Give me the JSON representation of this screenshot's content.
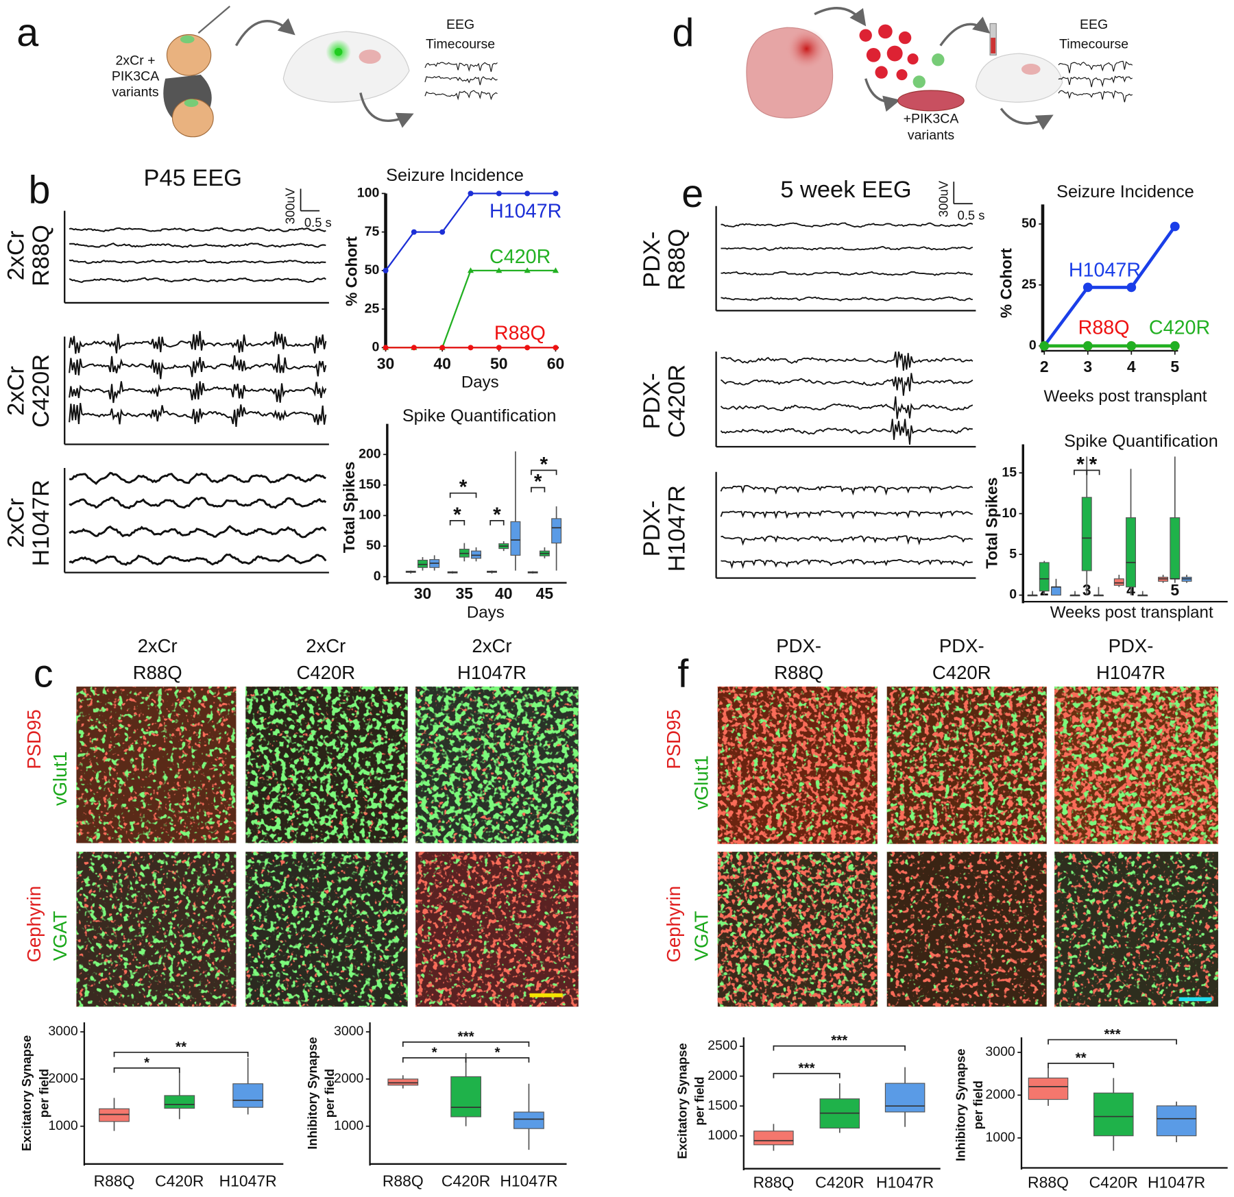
{
  "panel_a": {
    "label": "a",
    "construct": [
      "2xCr +",
      "PIK3CA",
      "variants"
    ],
    "eeg": [
      "EEG",
      "Timecourse"
    ]
  },
  "panel_b": {
    "label": "b",
    "title": "P45 EEG",
    "scale": [
      "300uV",
      "0.5 s"
    ],
    "rows": [
      [
        "2xCr",
        "R88Q"
      ],
      [
        "2xCr",
        "C420R"
      ],
      [
        "2xCr",
        "H1047R"
      ]
    ]
  },
  "panel_c": {
    "label": "c",
    "columns": [
      [
        "2xCr",
        "R88Q"
      ],
      [
        "2xCr",
        "C420R"
      ],
      [
        "2xCr",
        "H1047R"
      ]
    ],
    "rows": [
      [
        "PSD95",
        "vGlut1"
      ],
      [
        "Gephyrin",
        "VGAT"
      ]
    ]
  },
  "panel_d": {
    "label": "d",
    "treatment": [
      "+PIK3CA",
      "variants"
    ],
    "eeg": [
      "EEG",
      "Timecourse"
    ]
  },
  "panel_e": {
    "label": "e",
    "title": "5 week EEG",
    "scale": [
      "300uV",
      "0.5 s"
    ],
    "rows": [
      [
        "PDX-",
        "R88Q"
      ],
      [
        "PDX-",
        "C420R"
      ],
      [
        "PDX-",
        "H1047R"
      ]
    ]
  },
  "panel_f": {
    "label": "f",
    "columns": [
      [
        "PDX-",
        "R88Q"
      ],
      [
        "PDX-",
        "C420R"
      ],
      [
        "PDX-",
        "H1047R"
      ]
    ],
    "rows": [
      [
        "PSD95",
        "vGlut1"
      ],
      [
        "Gephyrin",
        "VGAT"
      ]
    ]
  },
  "chart_data": [
    {
      "type": "line",
      "title": "Seizure Incidence",
      "xlabel": "Days",
      "ylabel": "% Cohort",
      "x": [
        30,
        35,
        40,
        45,
        50,
        55,
        60
      ],
      "xlim": [
        30,
        60
      ],
      "xticks": [
        30,
        40,
        50,
        60
      ],
      "ylim": [
        0,
        100
      ],
      "yticks": [
        0,
        25,
        50,
        75,
        100
      ],
      "series": [
        {
          "name": "H1047R",
          "color": "#1c2fd6",
          "values": [
            50,
            75,
            75,
            100,
            100,
            100,
            100
          ]
        },
        {
          "name": "C420R",
          "color": "#22b022",
          "values": [
            0,
            0,
            0,
            50,
            50,
            50,
            50
          ]
        },
        {
          "name": "R88Q",
          "color": "#ee1111",
          "values": [
            0,
            0,
            0,
            0,
            0,
            0,
            0
          ]
        }
      ]
    },
    {
      "type": "box",
      "title": "Spike Quantification",
      "xlabel": "Days",
      "ylabel": "Total Spikes",
      "categories": [
        "30",
        "35",
        "40",
        "45"
      ],
      "ylim": [
        -10,
        250
      ],
      "yticks": [
        0,
        50,
        100,
        150,
        200
      ],
      "series": [
        {
          "color": "#f4776d",
          "values": [
            {
              "min": 5,
              "q1": 7,
              "median": 8,
              "q3": 9,
              "max": 10
            },
            {
              "min": 5,
              "q1": 6,
              "median": 7,
              "q3": 8,
              "max": 9
            },
            {
              "min": 5,
              "q1": 7,
              "median": 8,
              "q3": 9,
              "max": 10
            },
            {
              "min": 5,
              "q1": 6,
              "median": 7,
              "q3": 8,
              "max": 9
            }
          ]
        },
        {
          "color": "#1fb24a",
          "values": [
            {
              "min": 10,
              "q1": 15,
              "median": 20,
              "q3": 27,
              "max": 32
            },
            {
              "min": 25,
              "q1": 32,
              "median": 38,
              "q3": 45,
              "max": 55
            },
            {
              "min": 42,
              "q1": 46,
              "median": 50,
              "q3": 54,
              "max": 58
            },
            {
              "min": 30,
              "q1": 34,
              "median": 38,
              "q3": 42,
              "max": 48
            }
          ]
        },
        {
          "color": "#5a9be6",
          "values": [
            {
              "min": 10,
              "q1": 15,
              "median": 22,
              "q3": 28,
              "max": 35
            },
            {
              "min": 25,
              "q1": 30,
              "median": 35,
              "q3": 42,
              "max": 48
            },
            {
              "min": 10,
              "q1": 35,
              "median": 60,
              "q3": 90,
              "max": 205
            },
            {
              "min": 10,
              "q1": 55,
              "median": 80,
              "q3": 95,
              "max": 115
            }
          ]
        }
      ],
      "annotations": [
        "*",
        "*",
        "*",
        "*",
        "*"
      ]
    },
    {
      "type": "line",
      "title": "Seizure Incidence",
      "xlabel": "Weeks post transplant",
      "ylabel": "% Cohort",
      "x": [
        2,
        3,
        4,
        5
      ],
      "xlim": [
        2,
        5
      ],
      "xticks": [
        2,
        3,
        4,
        5
      ],
      "ylim": [
        -2,
        58
      ],
      "yticks": [
        0,
        25,
        50
      ],
      "series": [
        {
          "name": "H1047R",
          "color": "#1a3ee8",
          "values": [
            0,
            24,
            24,
            49
          ]
        },
        {
          "name": "R88Q",
          "color": "#ee1111",
          "values": [
            0,
            0,
            0,
            0
          ]
        },
        {
          "name": "C420R",
          "color": "#22b022",
          "values": [
            0,
            0,
            0,
            0
          ]
        }
      ]
    },
    {
      "type": "box",
      "title": "Spike Quantification",
      "xlabel": "Weeks post transplant",
      "ylabel": "Total Spikes",
      "categories": [
        "2",
        "3",
        "4",
        "5"
      ],
      "ylim": [
        -0.8,
        18.5
      ],
      "yticks": [
        0,
        5,
        10,
        15
      ],
      "series": [
        {
          "color": "#f4776d",
          "values": [
            {
              "min": 0,
              "q1": 0,
              "median": 0,
              "q3": 0,
              "max": 0.5
            },
            {
              "min": 0,
              "q1": 0,
              "median": 0,
              "q3": 0,
              "max": 0.5
            },
            {
              "min": 1,
              "q1": 1.2,
              "median": 1.5,
              "q3": 2,
              "max": 2.5
            },
            {
              "min": 1.5,
              "q1": 1.7,
              "median": 2,
              "q3": 2.2,
              "max": 2.5
            }
          ]
        },
        {
          "color": "#1fb24a",
          "values": [
            {
              "min": 0,
              "q1": 0.5,
              "median": 2,
              "q3": 4,
              "max": 4.2
            },
            {
              "min": 0,
              "q1": 3,
              "median": 7,
              "q3": 12,
              "max": 17
            },
            {
              "min": 0,
              "q1": 1,
              "median": 4,
              "q3": 9.5,
              "max": 15.5
            },
            {
              "min": 1.5,
              "q1": 2,
              "median": 2,
              "q3": 9.5,
              "max": 17
            }
          ]
        },
        {
          "color": "#5a9be6",
          "values": [
            {
              "min": 0,
              "q1": 0,
              "median": 1,
              "q3": 1,
              "max": 2
            },
            {
              "min": 0,
              "q1": 0,
              "median": 0,
              "q3": 0,
              "max": 1
            },
            {
              "min": 0,
              "q1": 0,
              "median": 0,
              "q3": 0,
              "max": 0.5
            },
            {
              "min": 1.5,
              "q1": 1.7,
              "median": 2,
              "q3": 2.2,
              "max": 2.5
            }
          ]
        }
      ],
      "annotations": [
        "*",
        "*"
      ]
    },
    {
      "type": "box",
      "ylabel": [
        "Excitatory Synapse",
        "per field"
      ],
      "categories": [
        "R88Q",
        "C420R",
        "H1047R"
      ],
      "ylim": [
        200,
        3200
      ],
      "yticks": [
        1000,
        2000,
        3000
      ],
      "series": [
        {
          "colors": [
            "#f4776d",
            "#1fb24a",
            "#5a9be6"
          ],
          "values": [
            {
              "min": 900,
              "q1": 1100,
              "median": 1250,
              "q3": 1370,
              "max": 1600
            },
            {
              "min": 1150,
              "q1": 1380,
              "median": 1460,
              "q3": 1650,
              "max": 2150
            },
            {
              "min": 1250,
              "q1": 1400,
              "median": 1550,
              "q3": 1900,
              "max": 2450
            }
          ]
        }
      ],
      "annotations": [
        "*",
        "**"
      ]
    },
    {
      "type": "box",
      "ylabel": [
        "Inhibitory Synapse",
        "per field"
      ],
      "categories": [
        "R88Q",
        "C420R",
        "H1047R"
      ],
      "ylim": [
        200,
        3200
      ],
      "yticks": [
        1000,
        2000,
        3000
      ],
      "series": [
        {
          "colors": [
            "#f4776d",
            "#1fb24a",
            "#5a9be6"
          ],
          "values": [
            {
              "min": 1800,
              "q1": 1870,
              "median": 1920,
              "q3": 2000,
              "max": 2080
            },
            {
              "min": 1000,
              "q1": 1200,
              "median": 1400,
              "q3": 2050,
              "max": 2550
            },
            {
              "min": 500,
              "q1": 950,
              "median": 1150,
              "q3": 1300,
              "max": 1900
            }
          ]
        }
      ],
      "annotations": [
        "*",
        "*",
        "***"
      ]
    },
    {
      "type": "box",
      "ylabel": [
        "Excitatory Synapse",
        "per field"
      ],
      "categories": [
        "R88Q",
        "C420R",
        "H1047R"
      ],
      "ylim": [
        450,
        2650
      ],
      "yticks": [
        1000,
        1500,
        2000,
        2500
      ],
      "series": [
        {
          "colors": [
            "#f4776d",
            "#1fb24a",
            "#5a9be6"
          ],
          "values": [
            {
              "min": 750,
              "q1": 850,
              "median": 920,
              "q3": 1080,
              "max": 1200
            },
            {
              "min": 1050,
              "q1": 1130,
              "median": 1380,
              "q3": 1620,
              "max": 1880
            },
            {
              "min": 1150,
              "q1": 1400,
              "median": 1500,
              "q3": 1880,
              "max": 2150
            }
          ]
        }
      ],
      "annotations": [
        "***",
        "***"
      ]
    },
    {
      "type": "box",
      "ylabel": [
        "Inhibitory Synapse",
        "per field"
      ],
      "categories": [
        "R88Q",
        "C420R",
        "H1047R"
      ],
      "ylim": [
        300,
        3350
      ],
      "yticks": [
        1000,
        2000,
        3000
      ],
      "series": [
        {
          "colors": [
            "#f4776d",
            "#1fb24a",
            "#5a9be6"
          ],
          "values": [
            {
              "min": 1750,
              "q1": 1900,
              "median": 2200,
              "q3": 2400,
              "max": 2650
            },
            {
              "min": 700,
              "q1": 1050,
              "median": 1500,
              "q3": 2050,
              "max": 2400
            },
            {
              "min": 900,
              "q1": 1050,
              "median": 1450,
              "q3": 1750,
              "max": 1850
            }
          ]
        }
      ],
      "annotations": [
        "**",
        "***"
      ]
    }
  ]
}
